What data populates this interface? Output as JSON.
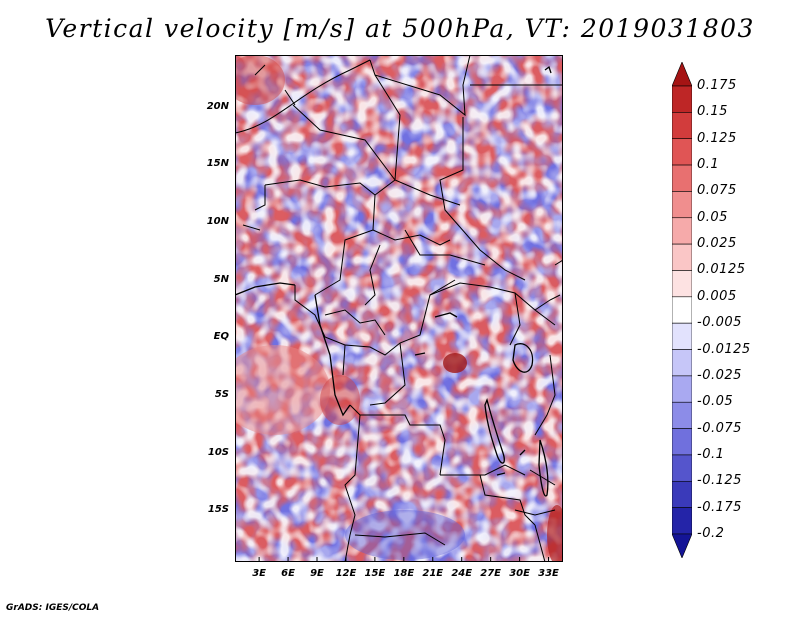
{
  "title": "Vertical velocity [m/s] at 500hPa, VT: 2019031803",
  "credit": "GrADS: IGES/COLA",
  "map": {
    "lat_range": [
      -19.5,
      24.5
    ],
    "lon_range": [
      0.5,
      34.5
    ],
    "lat_labels": [
      "20N",
      "15N",
      "10N",
      "5N",
      "EQ",
      "5S",
      "10S",
      "15S"
    ],
    "lat_values": [
      20,
      15,
      10,
      5,
      0,
      -5,
      -10,
      -15
    ],
    "lon_labels": [
      "3E",
      "6E",
      "9E",
      "12E",
      "15E",
      "18E",
      "21E",
      "24E",
      "27E",
      "30E",
      "33E"
    ],
    "lon_values": [
      3,
      6,
      9,
      12,
      15,
      18,
      21,
      24,
      27,
      30,
      33
    ]
  },
  "colorbar": {
    "labels": [
      "0.175",
      "0.15",
      "0.125",
      "0.1",
      "0.075",
      "0.05",
      "0.025",
      "0.0125",
      "0.005",
      "-0.005",
      "-0.0125",
      "-0.025",
      "-0.05",
      "-0.075",
      "-0.1",
      "-0.125",
      "-0.175",
      "-0.2"
    ],
    "colors": [
      "#a51414",
      "#be2626",
      "#d23c3c",
      "#e05555",
      "#e87070",
      "#f08e8e",
      "#f6aaaa",
      "#fac6c6",
      "#fde2e2",
      "#ffffff",
      "#e2e2fd",
      "#c6c6f8",
      "#a9a9f1",
      "#8c8ce8",
      "#7070dd",
      "#5555cc",
      "#3a3aba",
      "#2424a8",
      "#141496"
    ]
  }
}
